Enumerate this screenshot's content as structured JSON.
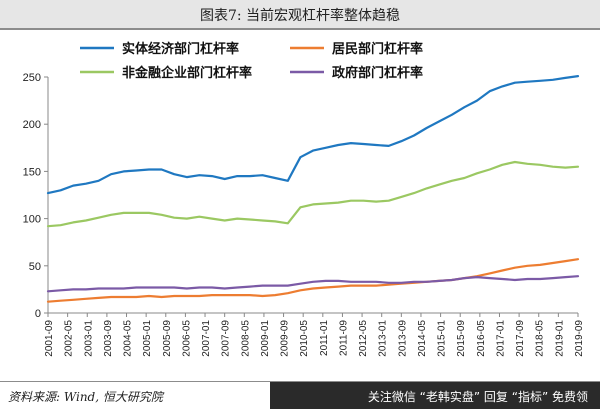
{
  "title": "图表7: 当前宏观杠杆率整体趋稳",
  "source": "资料来源: Wind, 恒大研究院",
  "banner": "关注微信 “老韩实盘” 回复 “指标” 免费领",
  "chart_data": {
    "type": "line",
    "ylim": [
      0,
      250
    ],
    "yticks": [
      0,
      50,
      100,
      150,
      200,
      250
    ],
    "xticks": [
      "2001-09",
      "2002-05",
      "2003-01",
      "2003-09",
      "2004-05",
      "2005-01",
      "2005-09",
      "2006-05",
      "2007-01",
      "2007-09",
      "2008-05",
      "2009-01",
      "2009-09",
      "2010-05",
      "2011-01",
      "2011-09",
      "2012-05",
      "2013-01",
      "2013-09",
      "2014-05",
      "2015-01",
      "2015-09",
      "2016-05",
      "2017-01",
      "2017-09",
      "2018-05",
      "2019-01",
      "2019-09"
    ],
    "grid": false,
    "legend": "top",
    "series": [
      {
        "name": "实体经济部门杠杆率",
        "color": "#1f78c1",
        "values": [
          127,
          130,
          135,
          137,
          140,
          147,
          150,
          151,
          152,
          152,
          147,
          144,
          146,
          145,
          142,
          145,
          145,
          146,
          143,
          140,
          165,
          172,
          175,
          178,
          180,
          179,
          178,
          177,
          182,
          188,
          196,
          203,
          210,
          218,
          225,
          235,
          240,
          244,
          245,
          246,
          247,
          249,
          251
        ]
      },
      {
        "name": "居民部门杠杆率",
        "color": "#ed7d31",
        "values": [
          12,
          13,
          14,
          15,
          16,
          17,
          17,
          17,
          18,
          17,
          18,
          18,
          18,
          19,
          19,
          19,
          19,
          18,
          19,
          21,
          24,
          26,
          27,
          28,
          29,
          29,
          29,
          30,
          31,
          32,
          33,
          34,
          35,
          37,
          39,
          42,
          45,
          48,
          50,
          51,
          53,
          55,
          57
        ]
      },
      {
        "name": "非金融企业部门杠杆率",
        "color": "#9bc862",
        "values": [
          92,
          93,
          96,
          98,
          101,
          104,
          106,
          106,
          106,
          104,
          101,
          100,
          102,
          100,
          98,
          100,
          99,
          98,
          97,
          95,
          112,
          115,
          116,
          117,
          119,
          119,
          118,
          119,
          123,
          127,
          132,
          136,
          140,
          143,
          148,
          152,
          157,
          160,
          158,
          157,
          155,
          154,
          155
        ]
      },
      {
        "name": "政府部门杠杆率",
        "color": "#7b5aa6",
        "values": [
          23,
          24,
          25,
          25,
          26,
          26,
          26,
          27,
          27,
          27,
          27,
          26,
          27,
          27,
          26,
          27,
          28,
          29,
          29,
          29,
          31,
          33,
          34,
          34,
          33,
          33,
          33,
          32,
          32,
          33,
          33,
          34,
          35,
          37,
          38,
          37,
          36,
          35,
          36,
          36,
          37,
          38,
          39
        ]
      }
    ]
  }
}
